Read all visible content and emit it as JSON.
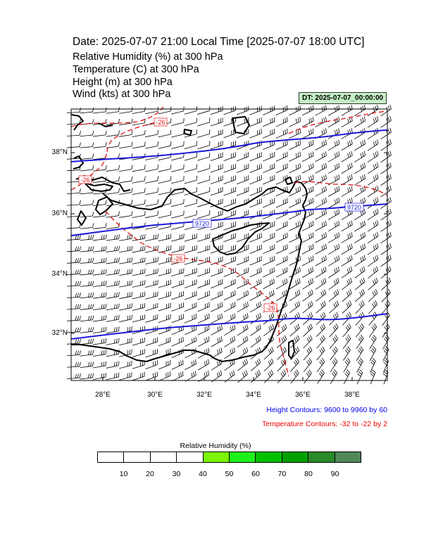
{
  "header": {
    "title": "Date: 2025-07-07  21:00 Local Time [2025-07-07  18:00 UTC]",
    "variables": [
      "Relative Humidity   (%)     at   300 hPa",
      "Temperature   (C)     at   300 hPa",
      "Height   (m)     at   300 hPa",
      "Wind   (kts)     at   300 hPa"
    ],
    "dt_badge": "DT: 2025-07-07_00:00:00"
  },
  "map": {
    "lat_labels": [
      "38°N",
      "36°N",
      "34°N",
      "32°N"
    ],
    "lon_labels": [
      "28°E",
      "30°E",
      "32°E",
      "34°E",
      "36°E",
      "38°E"
    ],
    "height_contour_labels": [
      "9720",
      "9720"
    ],
    "temperature_contour_labels": [
      "-26",
      "-26",
      "-26",
      "-26"
    ],
    "colors": {
      "height": "#1a1ad9",
      "temperature": "#e01010",
      "coast": "#000000",
      "barb": "#000000"
    }
  },
  "notes": {
    "height": "Height Contours: 9600 to 9960 by 60",
    "temperature": "Temperature Contours: -32 to -22 by 2"
  },
  "colorbar": {
    "title": "Relative Humidity  (%)",
    "colors": [
      "#ffffff",
      "#ffffff",
      "#ffffff",
      "#ffffff",
      "#7cf500",
      "#1ef01a",
      "#00c000",
      "#00a000",
      "#2a8a2a",
      "#50885a"
    ],
    "ticks": [
      "10",
      "20",
      "30",
      "40",
      "50",
      "60",
      "70",
      "80",
      "90"
    ]
  }
}
